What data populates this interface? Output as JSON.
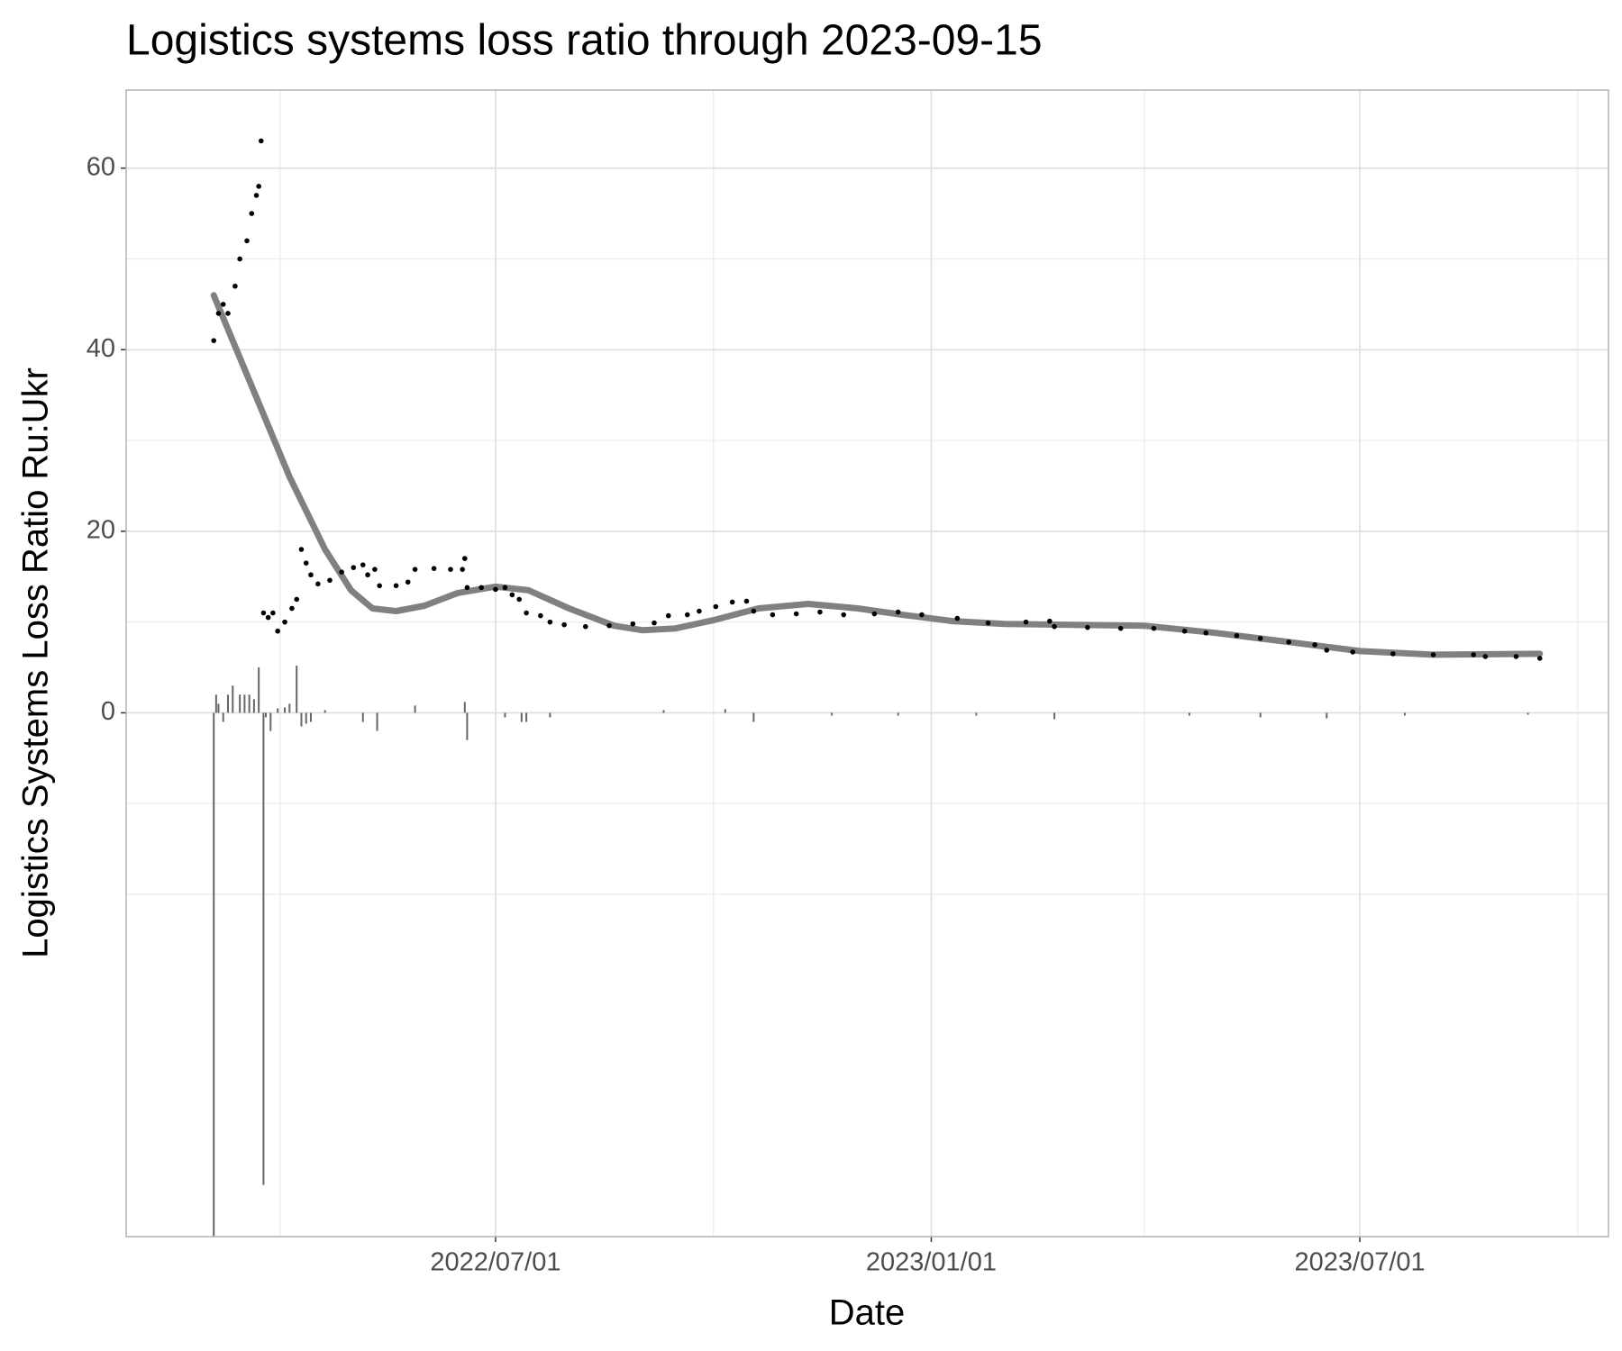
{
  "chart_data": {
    "type": "combo",
    "title": "Logistics systems loss ratio through 2023-09-15",
    "x_label": "Date",
    "y_label": "Logistics Systems Loss Ratio Ru:Ukr",
    "xlim": [
      "2022-01-26",
      "2023-10-14"
    ],
    "xticks": [
      {
        "value": "2022-07-01",
        "label": "2022/07/01"
      },
      {
        "value": "2023-01-01",
        "label": "2023/01/01"
      },
      {
        "value": "2023-07-01",
        "label": "2023/07/01"
      }
    ],
    "xminor": [
      "2022-04-01",
      "2022-10-01",
      "2023-04-01",
      "2023-10-01"
    ],
    "ylim": [
      -57.7,
      68.6
    ],
    "yticks": [
      0,
      20,
      40,
      60
    ],
    "yminor": [
      -20,
      -10,
      10,
      30,
      50
    ],
    "grid": true,
    "series": [
      {
        "type": "bar",
        "color": "#666666",
        "x": [
          "2022-03-04",
          "2022-03-05",
          "2022-03-06",
          "2022-03-08",
          "2022-03-10",
          "2022-03-12",
          "2022-03-15",
          "2022-03-17",
          "2022-03-19",
          "2022-03-21",
          "2022-03-23",
          "2022-03-25",
          "2022-03-26",
          "2022-03-28",
          "2022-03-31",
          "2022-04-03",
          "2022-04-05",
          "2022-04-08",
          "2022-04-10",
          "2022-04-12",
          "2022-04-14",
          "2022-04-20",
          "2022-05-06",
          "2022-05-12",
          "2022-05-28",
          "2022-06-18",
          "2022-06-19",
          "2022-07-05",
          "2022-07-12",
          "2022-07-14",
          "2022-07-24",
          "2022-09-10",
          "2022-10-06",
          "2022-10-18",
          "2022-11-20",
          "2022-12-18",
          "2023-01-20",
          "2023-02-22",
          "2023-04-20",
          "2023-05-20",
          "2023-06-17",
          "2023-07-20",
          "2023-09-10"
        ],
        "values": [
          -58,
          2,
          1,
          -1,
          2,
          3,
          2,
          2,
          2,
          1.5,
          5,
          -52,
          -0.5,
          -2,
          0.5,
          0.6,
          1,
          5.2,
          -1.5,
          -1.2,
          -1,
          0.3,
          -1,
          -2,
          0.8,
          1.2,
          -3,
          -0.5,
          -1,
          -1,
          -0.5,
          0.3,
          0.4,
          -1,
          -0.3,
          -0.3,
          -0.3,
          -0.7,
          -0.3,
          -0.5,
          -0.6,
          -0.3,
          -0.2
        ]
      },
      {
        "type": "line",
        "color": "#808080",
        "x": [
          "2022-03-04",
          "2022-03-20",
          "2022-04-05",
          "2022-04-20",
          "2022-05-01",
          "2022-05-10",
          "2022-05-20",
          "2022-06-01",
          "2022-06-15",
          "2022-07-01",
          "2022-07-15",
          "2022-08-01",
          "2022-08-20",
          "2022-09-01",
          "2022-09-15",
          "2022-10-01",
          "2022-10-20",
          "2022-11-10",
          "2022-12-01",
          "2022-12-20",
          "2023-01-10",
          "2023-02-01",
          "2023-03-01",
          "2023-04-01",
          "2023-05-01",
          "2023-06-01",
          "2023-07-01",
          "2023-08-01",
          "2023-09-15"
        ],
        "values": [
          46,
          36,
          26,
          18,
          13.5,
          11.5,
          11.2,
          11.8,
          13.2,
          13.9,
          13.5,
          11.5,
          9.6,
          9.1,
          9.3,
          10.2,
          11.5,
          12,
          11.5,
          10.8,
          10.1,
          9.8,
          9.7,
          9.6,
          8.8,
          7.8,
          6.8,
          6.4,
          6.5
        ]
      },
      {
        "type": "scatter",
        "color": "#000000",
        "x": [
          "2022-03-04",
          "2022-03-06",
          "2022-03-08",
          "2022-03-10",
          "2022-03-13",
          "2022-03-15",
          "2022-03-18",
          "2022-03-20",
          "2022-03-22",
          "2022-03-23",
          "2022-03-24",
          "2022-03-25",
          "2022-03-27",
          "2022-03-29",
          "2022-03-31",
          "2022-04-03",
          "2022-04-06",
          "2022-04-08",
          "2022-04-10",
          "2022-04-12",
          "2022-04-14",
          "2022-04-17",
          "2022-04-22",
          "2022-04-27",
          "2022-05-02",
          "2022-05-06",
          "2022-05-08",
          "2022-05-11",
          "2022-05-13",
          "2022-05-20",
          "2022-05-25",
          "2022-05-28",
          "2022-06-05",
          "2022-06-12",
          "2022-06-17",
          "2022-06-18",
          "2022-06-19",
          "2022-06-25",
          "2022-07-01",
          "2022-07-05",
          "2022-07-08",
          "2022-07-11",
          "2022-07-14",
          "2022-07-20",
          "2022-07-24",
          "2022-07-30",
          "2022-08-08",
          "2022-08-18",
          "2022-08-28",
          "2022-09-06",
          "2022-09-12",
          "2022-09-20",
          "2022-09-25",
          "2022-10-02",
          "2022-10-09",
          "2022-10-15",
          "2022-10-18",
          "2022-10-26",
          "2022-11-05",
          "2022-11-15",
          "2022-11-25",
          "2022-12-08",
          "2022-12-18",
          "2022-12-28",
          "2023-01-12",
          "2023-01-25",
          "2023-02-10",
          "2023-02-20",
          "2023-02-22",
          "2023-03-08",
          "2023-03-22",
          "2023-04-05",
          "2023-04-18",
          "2023-04-27",
          "2023-05-10",
          "2023-05-20",
          "2023-06-01",
          "2023-06-12",
          "2023-06-17",
          "2023-06-28",
          "2023-07-15",
          "2023-08-01",
          "2023-08-18",
          "2023-08-23",
          "2023-09-05",
          "2023-09-15"
        ],
        "values": [
          41,
          44,
          45,
          44,
          47,
          50,
          52,
          55,
          57,
          58,
          63,
          11,
          10.5,
          11,
          9,
          10,
          11.5,
          12.5,
          18,
          16.5,
          15.2,
          14.2,
          14.6,
          15.5,
          16,
          16.3,
          15.2,
          15.8,
          14,
          14,
          14.4,
          15.8,
          15.9,
          15.8,
          15.8,
          17,
          13.8,
          13.8,
          13.6,
          13.8,
          13,
          12.5,
          11,
          10.7,
          10,
          9.7,
          9.5,
          9.6,
          9.8,
          9.9,
          10.7,
          10.8,
          11.2,
          11.7,
          12.2,
          12.3,
          11.2,
          10.8,
          10.9,
          11.1,
          10.8,
          10.9,
          11.1,
          10.8,
          10.4,
          9.9,
          10,
          10.1,
          9.5,
          9.4,
          9.3,
          9.3,
          9,
          8.8,
          8.5,
          8.2,
          7.8,
          7.5,
          6.9,
          6.7,
          6.5,
          6.4,
          6.4,
          6.2,
          6.2,
          6
        ]
      }
    ]
  }
}
